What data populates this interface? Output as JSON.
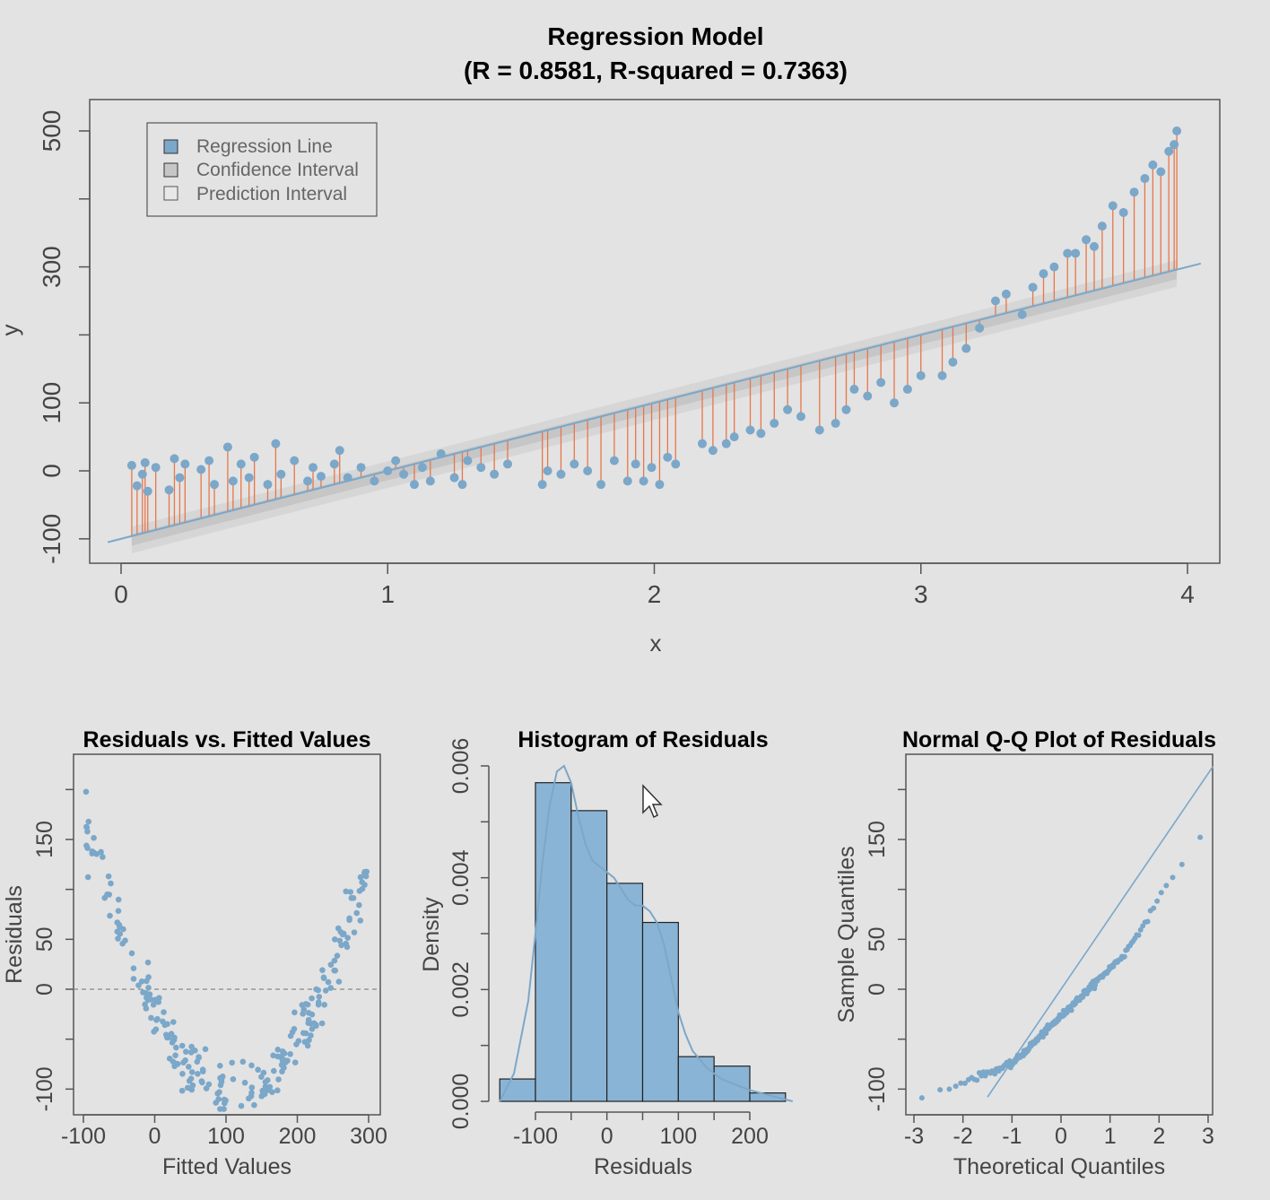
{
  "colors": {
    "background": "#e3e3e3",
    "point": "#7ba7c9",
    "point_dark": "#6a98bd",
    "regression_line": "#7ba7c9",
    "residual_segment": "#e8764a",
    "confidence_band": "#c6c6c6",
    "prediction_band": "#d6d6d6",
    "hist_fill": "#8ab4d6",
    "frame": "#555555",
    "text": "#111111",
    "axis_text": "#444444"
  },
  "icons": {
    "cursor": "mouse-pointer-icon"
  },
  "chart_data": [
    {
      "type": "scatter",
      "title": "Regression Model",
      "subtitle": "(R = 0.8581, R-squared = 0.7363)",
      "xlabel": "x",
      "ylabel": "y",
      "xlim": [
        -0.12,
        4.12
      ],
      "ylim": [
        -135,
        545
      ],
      "xticks": [
        "0",
        "1",
        "2",
        "3",
        "4"
      ],
      "yticks": [
        "-100",
        "0",
        "100",
        "300",
        "500"
      ],
      "grid": false,
      "legend": {
        "placement": "top-left",
        "entries": [
          "Regression Line",
          "Confidence Interval",
          "Prediction Interval"
        ]
      },
      "regression_line": {
        "intercept": -100,
        "slope": 100,
        "x_range": [
          -0.05,
          4.05
        ]
      },
      "confidence_band_halfwidth": 10,
      "x": [
        0.04,
        0.06,
        0.08,
        0.09,
        0.1,
        0.13,
        0.18,
        0.2,
        0.22,
        0.24,
        0.3,
        0.33,
        0.35,
        0.4,
        0.42,
        0.45,
        0.48,
        0.5,
        0.55,
        0.58,
        0.6,
        0.65,
        0.7,
        0.72,
        0.75,
        0.8,
        0.82,
        0.85,
        0.9,
        0.95,
        1.0,
        1.03,
        1.06,
        1.1,
        1.13,
        1.16,
        1.2,
        1.25,
        1.28,
        1.3,
        1.35,
        1.4,
        1.45,
        1.58,
        1.6,
        1.65,
        1.7,
        1.75,
        1.8,
        1.85,
        1.9,
        1.93,
        1.96,
        1.99,
        2.02,
        2.05,
        2.08,
        2.18,
        2.22,
        2.27,
        2.3,
        2.36,
        2.4,
        2.45,
        2.5,
        2.55,
        2.62,
        2.68,
        2.72,
        2.75,
        2.8,
        2.85,
        2.9,
        2.95,
        3.0,
        3.08,
        3.12,
        3.17,
        3.22,
        3.28,
        3.32,
        3.38,
        3.42,
        3.46,
        3.5,
        3.55,
        3.58,
        3.62,
        3.65,
        3.68,
        3.72,
        3.76,
        3.8,
        3.84,
        3.87,
        3.9,
        3.93,
        3.95,
        3.96
      ],
      "y": [
        8,
        -22,
        -5,
        12,
        -30,
        5,
        -28,
        18,
        -10,
        10,
        2,
        15,
        -20,
        35,
        -15,
        10,
        -10,
        20,
        -20,
        40,
        -5,
        15,
        -15,
        5,
        -8,
        10,
        30,
        -10,
        5,
        -15,
        0,
        15,
        -5,
        -20,
        5,
        -15,
        25,
        -10,
        -20,
        15,
        5,
        -5,
        10,
        -20,
        0,
        -5,
        10,
        0,
        -20,
        15,
        -15,
        10,
        -15,
        5,
        -20,
        20,
        10,
        40,
        30,
        40,
        50,
        60,
        55,
        70,
        90,
        80,
        60,
        70,
        90,
        120,
        110,
        130,
        100,
        120,
        140,
        140,
        160,
        180,
        210,
        250,
        260,
        230,
        270,
        290,
        300,
        320,
        320,
        340,
        330,
        360,
        390,
        380,
        410,
        430,
        450,
        440,
        470,
        480,
        500
      ],
      "description_note": ""
    },
    {
      "type": "scatter",
      "title": "Residuals vs. Fitted Values",
      "xlabel": "Fitted Values",
      "ylabel": "Residuals",
      "xlim": [
        -110,
        310
      ],
      "ylim": [
        -125,
        235
      ],
      "xticks": [
        "-100",
        "0",
        "100",
        "200",
        "300"
      ],
      "yticks": [
        "-100",
        "0",
        "50",
        "150"
      ],
      "reference_line": 0,
      "model": "r = 0.0063*(f-110)^2 - 100"
    },
    {
      "type": "bar",
      "title": "Histogram of Residuals",
      "xlabel": "Residuals",
      "ylabel": "Density",
      "xlim": [
        -170,
        270
      ],
      "ylim": [
        0,
        0.0062
      ],
      "xticks": [
        "-100",
        "0",
        "100",
        "200"
      ],
      "yticks": [
        "0.000",
        "0.002",
        "0.004",
        "0.006"
      ],
      "bins": [
        [
          -150,
          -100
        ],
        [
          -100,
          -50
        ],
        [
          -50,
          0
        ],
        [
          0,
          50
        ],
        [
          50,
          100
        ],
        [
          100,
          150
        ],
        [
          150,
          200
        ],
        [
          200,
          250
        ]
      ],
      "values": [
        0.0004,
        0.0057,
        0.0052,
        0.0039,
        0.0032,
        0.0008,
        0.00063,
        0.00015
      ],
      "density_curve": {
        "x": [
          -150,
          -130,
          -110,
          -100,
          -90,
          -80,
          -70,
          -60,
          -50,
          -40,
          -30,
          -20,
          -10,
          0,
          10,
          20,
          30,
          40,
          50,
          60,
          70,
          80,
          90,
          100,
          110,
          120,
          140,
          160,
          180,
          200,
          230,
          260
        ],
        "y": [
          0.0,
          0.0005,
          0.0018,
          0.003,
          0.0043,
          0.0053,
          0.0059,
          0.006,
          0.0057,
          0.0051,
          0.0046,
          0.0043,
          0.0042,
          0.0041,
          0.004,
          0.0038,
          0.0036,
          0.0035,
          0.0035,
          0.0034,
          0.0032,
          0.0028,
          0.0022,
          0.0016,
          0.0012,
          0.0009,
          0.0006,
          0.0004,
          0.0003,
          0.0002,
          0.0001,
          0.0
        ]
      }
    },
    {
      "type": "scatter",
      "title": "Normal Q-Q Plot of Residuals",
      "xlabel": "Theoretical Quantiles",
      "ylabel": "Sample Quantiles",
      "xlim": [
        -3.15,
        3.15
      ],
      "ylim": [
        -125,
        235
      ],
      "xticks": [
        "-3",
        "-2",
        "-1",
        "0",
        "1",
        "2",
        "3"
      ],
      "yticks": [
        "-100",
        "0",
        "50",
        "150"
      ],
      "qq_line": {
        "intercept": 0,
        "slope": 72
      }
    }
  ]
}
